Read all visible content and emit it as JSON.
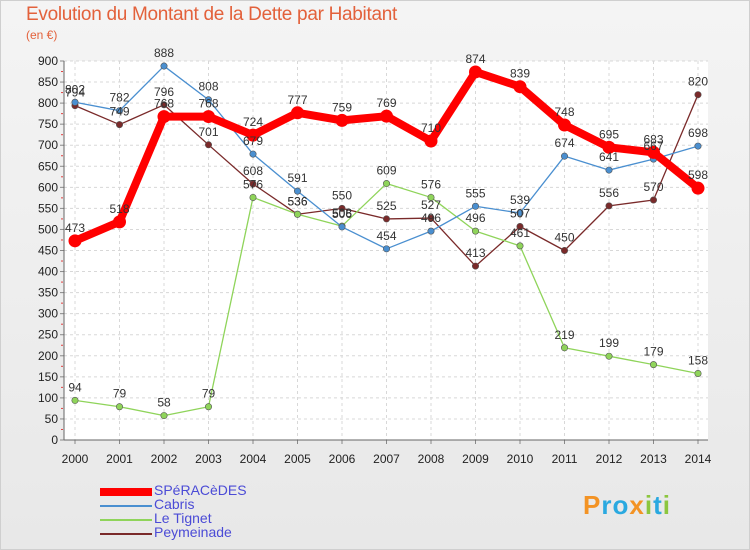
{
  "title": "Evolution du Montant de la Dette par Habitant",
  "unit": "(en €)",
  "chart_data": {
    "type": "line",
    "title": "Evolution du Montant de la Dette par Habitant",
    "ylabel": "(en €)",
    "xlabel": "",
    "ylim": [
      0,
      900
    ],
    "yticks": [
      0,
      50,
      100,
      150,
      200,
      250,
      300,
      350,
      400,
      450,
      500,
      550,
      600,
      650,
      700,
      750,
      800,
      850,
      900
    ],
    "x": [
      "2000",
      "2001",
      "2002",
      "2003",
      "2004",
      "2005",
      "2006",
      "2007",
      "2008",
      "2009",
      "2010",
      "2011",
      "2012",
      "2013",
      "2014"
    ],
    "grid": true,
    "legend_position": "bottom-left",
    "series": [
      {
        "name": "SPéRACèDES",
        "color": "#ff0000",
        "values": [
          473,
          518,
          768,
          768,
          724,
          777,
          759,
          769,
          710,
          874,
          839,
          748,
          695,
          683,
          598
        ]
      },
      {
        "name": "Cabris",
        "color": "#4a8fd0",
        "values": [
          802,
          782,
          888,
          808,
          679,
          591,
          506,
          454,
          496,
          555,
          539,
          674,
          641,
          667,
          698
        ]
      },
      {
        "name": "Le Tignet",
        "color": "#8fd45a",
        "values": [
          94,
          79,
          58,
          79,
          576,
          536,
          508,
          609,
          576,
          496,
          461,
          219,
          199,
          179,
          158
        ]
      },
      {
        "name": "Peymeinade",
        "color": "#7a2a2a",
        "values": [
          794,
          749,
          796,
          701,
          608,
          536,
          550,
          525,
          527,
          413,
          507,
          450,
          556,
          570,
          820
        ]
      }
    ]
  },
  "legend": [
    {
      "label": "SPéRACèDES"
    },
    {
      "label": "Cabris"
    },
    {
      "label": "Le Tignet"
    },
    {
      "label": "Peymeinade"
    }
  ],
  "logo": {
    "text": "Proxiti",
    "p": "P",
    "r": "r",
    "o": "o",
    "x": "x",
    "i": "i",
    "t": "t",
    "i2": "i"
  }
}
